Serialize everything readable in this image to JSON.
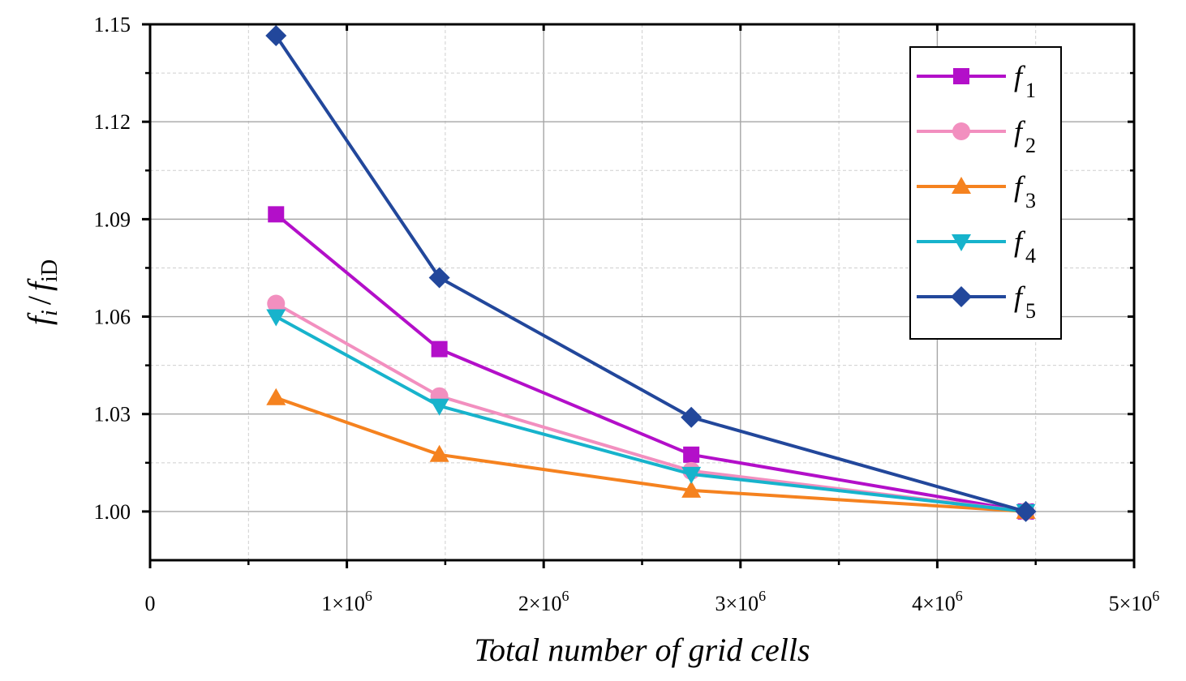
{
  "chart_data": {
    "type": "line",
    "title": "",
    "xlabel": "Total number of grid cells",
    "ylabel_main": "f",
    "ylabel_sub_numerator": "i",
    "ylabel_sub_denominator": "iD",
    "ylabel_separator": "/",
    "x": [
      640000,
      1470000,
      2750000,
      4450000
    ],
    "xlim": [
      0,
      5000000
    ],
    "ylim": [
      0.985,
      1.15
    ],
    "x_ticks": [
      0,
      1000000,
      2000000,
      3000000,
      4000000,
      5000000
    ],
    "x_tick_labels": [
      {
        "base": "0",
        "exp": ""
      },
      {
        "base": "1×10",
        "exp": "6"
      },
      {
        "base": "2×10",
        "exp": "6"
      },
      {
        "base": "3×10",
        "exp": "6"
      },
      {
        "base": "4×10",
        "exp": "6"
      },
      {
        "base": "5×10",
        "exp": "6"
      }
    ],
    "y_ticks": [
      1.0,
      1.03,
      1.06,
      1.09,
      1.12,
      1.15
    ],
    "y_tick_labels": [
      "1.00",
      "1.03",
      "1.06",
      "1.09",
      "1.12",
      "1.15"
    ],
    "grid": true,
    "legend_position": "top-right",
    "series": [
      {
        "name": "f",
        "sub": "1",
        "color": "#b30fc9",
        "marker": "square",
        "values": [
          1.0915,
          1.05,
          1.0175,
          1.0
        ]
      },
      {
        "name": "f",
        "sub": "2",
        "color": "#f28fbf",
        "marker": "circle",
        "values": [
          1.064,
          1.0355,
          1.0125,
          1.0
        ]
      },
      {
        "name": "f",
        "sub": "3",
        "color": "#f5821f",
        "marker": "triangle-up",
        "values": [
          1.035,
          1.0175,
          1.0065,
          1.0
        ]
      },
      {
        "name": "f",
        "sub": "4",
        "color": "#17b3cc",
        "marker": "triangle-down",
        "values": [
          1.06,
          1.0325,
          1.0115,
          1.0
        ]
      },
      {
        "name": "f",
        "sub": "5",
        "color": "#22479b",
        "marker": "diamond",
        "values": [
          1.1465,
          1.072,
          1.029,
          1.0
        ]
      }
    ]
  }
}
